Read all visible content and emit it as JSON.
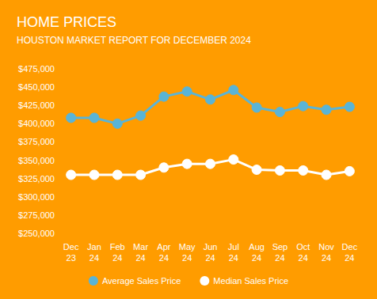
{
  "chart_data": {
    "type": "line",
    "title": "HOME PRICES",
    "subtitle": "HOUSTON MARKET REPORT FOR DECEMBER 2024",
    "categories": [
      "Dec 23",
      "Jan 24",
      "Feb 24",
      "Mar 24",
      "Apr 24",
      "May 24",
      "Jun 24",
      "Jul 24",
      "Aug 24",
      "Sep 24",
      "Oct 24",
      "Nov 24",
      "Dec 24"
    ],
    "series": [
      {
        "name": "Average Sales Price",
        "color": "#5ab4d6",
        "marker": "circle",
        "values": [
          408000,
          408000,
          400000,
          411000,
          437000,
          444000,
          433000,
          446000,
          422000,
          416000,
          424000,
          419000,
          423000
        ]
      },
      {
        "name": "Median Sales Price",
        "color": "#ffffff",
        "marker": "circle",
        "values": [
          330000,
          330000,
          330000,
          330000,
          340000,
          345000,
          345000,
          351000,
          337000,
          336000,
          336000,
          330000,
          335000
        ]
      }
    ],
    "ylim": [
      250000,
      475000
    ],
    "yticks": [
      {
        "value": 250000,
        "label": "$250,000"
      },
      {
        "value": 275000,
        "label": "$275,000"
      },
      {
        "value": 300000,
        "label": "$300,000"
      },
      {
        "value": 325000,
        "label": "$325,000"
      },
      {
        "value": 350000,
        "label": "$350,000"
      },
      {
        "value": 375000,
        "label": "$375,000"
      },
      {
        "value": 400000,
        "label": "$400,000"
      },
      {
        "value": 425000,
        "label": "$425,000"
      },
      {
        "value": 450000,
        "label": "$450,000"
      },
      {
        "value": 475000,
        "label": "$475,000"
      }
    ],
    "grid": false,
    "legend": "bottom"
  }
}
